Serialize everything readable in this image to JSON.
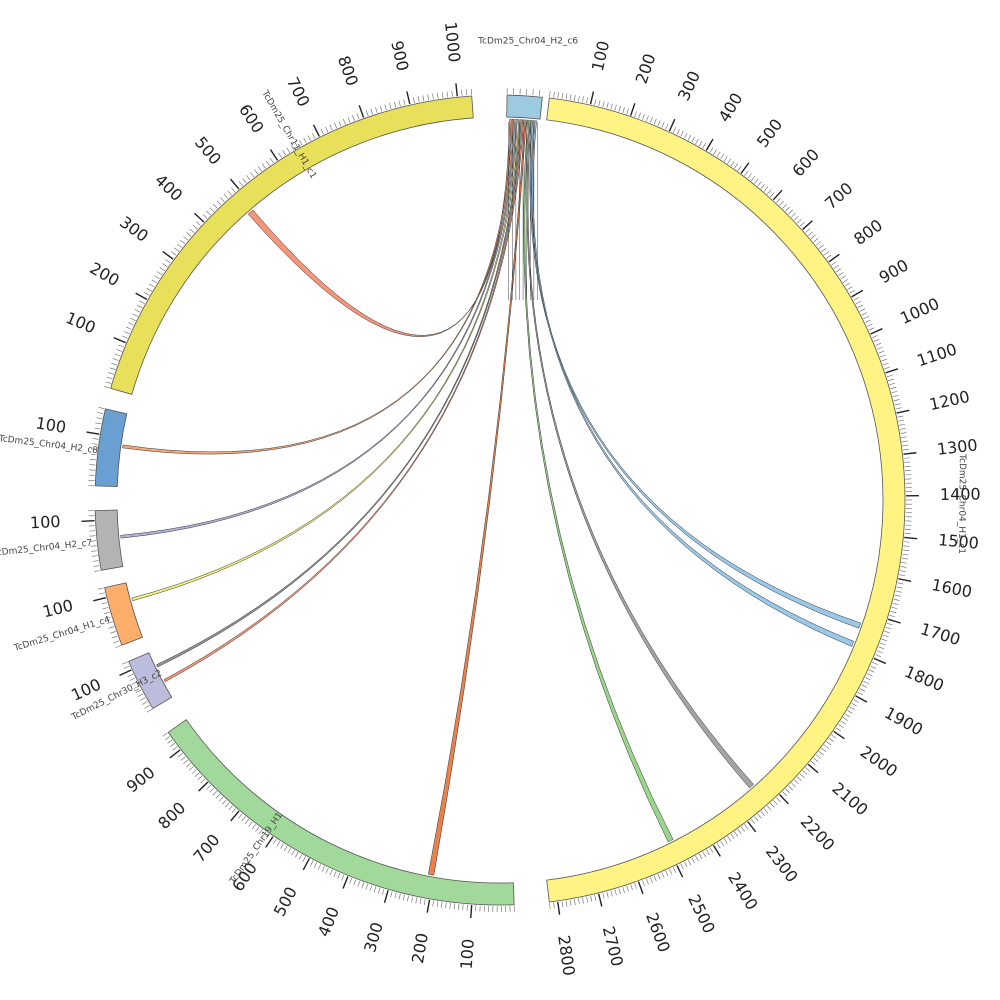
{
  "chart_data": {
    "type": "chord",
    "unit_label_step": 100,
    "segments": [
      {
        "id": "c6",
        "name": "TcDm25_Chr04_H2_c6",
        "length": 55,
        "color": "#9ecae1",
        "ticks": [],
        "name_shown": "TcDm25_Chr04_H2_c6"
      },
      {
        "id": "c1",
        "name": "TcDm25_Chr04_H1_c1",
        "length": 2820,
        "color": "#fff383",
        "ticks": [
          "100",
          "200",
          "300",
          "400",
          "500",
          "600",
          "700",
          "800",
          "900",
          "1000",
          "1100",
          "1200",
          "1300",
          "1400",
          "1500",
          "1600",
          "1700",
          "1800",
          "1900",
          "2000",
          "2100",
          "2200",
          "2300",
          "2400",
          "2500",
          "2600",
          "2700",
          "2800"
        ],
        "name_shown": "TcDm25_Chr04_H1_c1"
      },
      {
        "id": "chr19",
        "name": "TcDm25_Chr19_H1",
        "length": 950,
        "color": "#a1d99b",
        "ticks": [
          "100",
          "200",
          "300",
          "400",
          "500",
          "600",
          "700",
          "800",
          "900"
        ],
        "name_shown": "TcDm25_Chr19_H1"
      },
      {
        "id": "chr30",
        "name": "TcDm25_Chr30_H3_c2",
        "length": 120,
        "color": "#bcbddc",
        "ticks": [
          "100"
        ],
        "name_shown": "TcDm25_Chr30_H3_c2"
      },
      {
        "id": "orange",
        "name": "TcDm25_Chr04_H1_c4",
        "length": 120,
        "color": "#fdae6b",
        "ticks": [
          "100"
        ],
        "name_shown": "TcDm25_Chr04_H1_c4"
      },
      {
        "id": "grey",
        "name": "TcDm25_Chr04_H2_c7",
        "length": 120,
        "color": "#b3b3b3",
        "ticks": [
          "100"
        ],
        "name_shown": "TcDm25_Chr04_H2_c7"
      },
      {
        "id": "c8",
        "name": "TcDm25_Chr04_H2_c8",
        "length": 150,
        "color": "#6a9fd1",
        "ticks": [
          "100"
        ],
        "name_shown": "TcDm25_Chr04_H2_c8"
      },
      {
        "id": "chr11",
        "name": "TcDm25_Chr11_H1_c1",
        "length": 1030,
        "color": "#e8df5a",
        "ticks": [
          "100",
          "200",
          "300",
          "400",
          "500",
          "600",
          "700",
          "800",
          "900",
          "1000"
        ],
        "name_shown": "TcDm25_Chr11_H1_c1"
      }
    ],
    "links": [
      {
        "from": "c6",
        "to": "chr11",
        "to_pos": 480,
        "color": "#f4896b"
      },
      {
        "from": "c6",
        "to": "c8",
        "to_pos": 80,
        "color": "#f4a06b"
      },
      {
        "from": "c6",
        "to": "grey",
        "to_pos": 60,
        "color": "#a9a9d8"
      },
      {
        "from": "c6",
        "to": "orange",
        "to_pos": 80,
        "color": "#f3ee6f"
      },
      {
        "from": "c6",
        "to": "chr30",
        "to_pos": 80,
        "color": "#888888"
      },
      {
        "from": "c6",
        "to": "chr30",
        "to_pos": 40,
        "color": "#f4896b"
      },
      {
        "from": "c6",
        "to": "chr19",
        "to_pos": 200,
        "color": "#e8733a"
      },
      {
        "from": "c6",
        "to": "c1",
        "to_pos": 2480,
        "color": "#8fd07f"
      },
      {
        "from": "c6",
        "to": "c1",
        "to_pos": 2230,
        "color": "#9a9a9a"
      },
      {
        "from": "c6",
        "to": "c1",
        "to_pos": 1730,
        "color": "#8ec2e6"
      },
      {
        "from": "c6",
        "to": "c1",
        "to_pos": 1780,
        "color": "#8ec2e6"
      }
    ]
  }
}
